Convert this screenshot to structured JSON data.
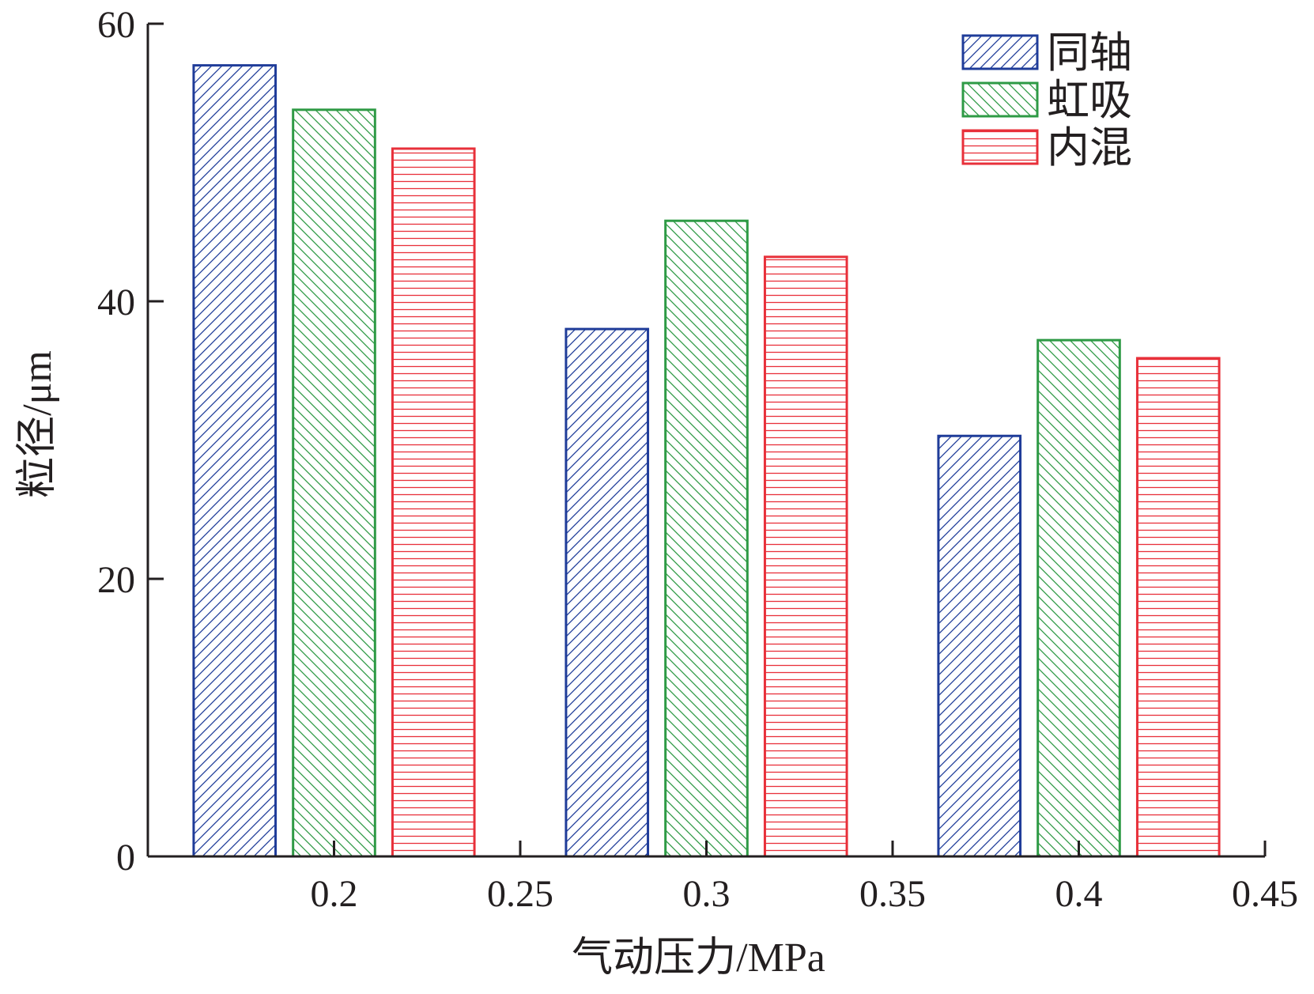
{
  "chart_data": {
    "type": "bar",
    "title": "",
    "xlabel": "气动压力/MPa",
    "ylabel": "粒径/μm",
    "xlim": [
      0.15,
      0.45
    ],
    "ylim": [
      0,
      60
    ],
    "xticks": [
      0.2,
      0.25,
      0.3,
      0.35,
      0.4,
      0.45
    ],
    "xtick_labels": [
      "0.2",
      "0.25",
      "0.3",
      "0.35",
      "0.4",
      "0.45"
    ],
    "yticks": [
      0,
      20,
      40,
      60
    ],
    "ytick_labels": [
      "0",
      "20",
      "40",
      "60"
    ],
    "categories": [
      0.2,
      0.3,
      0.4
    ],
    "bar_width": 0.022,
    "group_offsets": [
      -0.0267,
      0,
      0.0267
    ],
    "grid": false,
    "legend_position": "top-right",
    "series": [
      {
        "name": "同轴",
        "values": [
          57,
          38,
          30.3
        ],
        "color": "#1f3c99",
        "pattern": "diagonal-forward"
      },
      {
        "name": "虹吸",
        "values": [
          53.8,
          45.8,
          37.2
        ],
        "color": "#2e9a45",
        "pattern": "diagonal-backward"
      },
      {
        "name": "内混",
        "values": [
          51,
          43.2,
          35.9
        ],
        "color": "#e8303a",
        "pattern": "horizontal"
      }
    ]
  }
}
